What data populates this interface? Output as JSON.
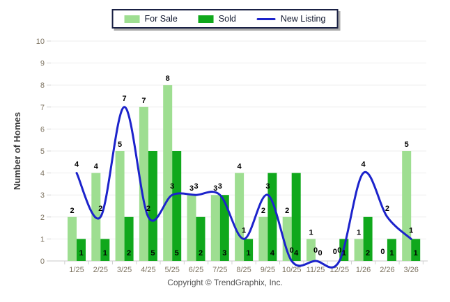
{
  "legend": {
    "items": [
      {
        "label": "For Sale",
        "swatch": "bar-swatch",
        "color": "#9EDE91"
      },
      {
        "label": "Sold",
        "swatch": "bar-swatch",
        "color": "#10A81C"
      },
      {
        "label": "New Listing",
        "swatch": "line-swatch",
        "color": "#1C23CB"
      }
    ]
  },
  "footer": {
    "copyright": "Copyright © TrendGraphix, Inc."
  },
  "chart_data": {
    "type": "combo",
    "categories": [
      "1/25",
      "2/25",
      "3/25",
      "4/25",
      "5/25",
      "6/25",
      "7/25",
      "8/25",
      "9/25",
      "10/25",
      "11/25",
      "12/25",
      "1/26",
      "2/26",
      "3/26"
    ],
    "series": [
      {
        "name": "For Sale",
        "render": "bar",
        "color": "#9EDE91",
        "values": [
          2,
          4,
          5,
          7,
          8,
          3,
          3,
          4,
          2,
          2,
          1,
          0,
          1,
          0,
          5
        ]
      },
      {
        "name": "Sold",
        "render": "bar",
        "color": "#10A81C",
        "values": [
          1,
          1,
          2,
          5,
          5,
          2,
          3,
          1,
          4,
          4,
          0,
          1,
          2,
          1,
          1
        ]
      },
      {
        "name": "New Listing",
        "render": "line",
        "color": "#1C23CB",
        "values": [
          4,
          2,
          7,
          2,
          3,
          3,
          3,
          1,
          3,
          0,
          0,
          0,
          4,
          2,
          1
        ]
      }
    ],
    "title": "",
    "xlabel": "",
    "ylabel": "Number of Homes",
    "ylim": [
      0,
      10
    ],
    "ytick_step": 1,
    "grid": true,
    "legend_position": "top",
    "data_labels": true,
    "tick_color": "#7d7361",
    "grid_color": "#ededed",
    "axis_color": "#c8c8c8",
    "label_color": "#000000"
  }
}
